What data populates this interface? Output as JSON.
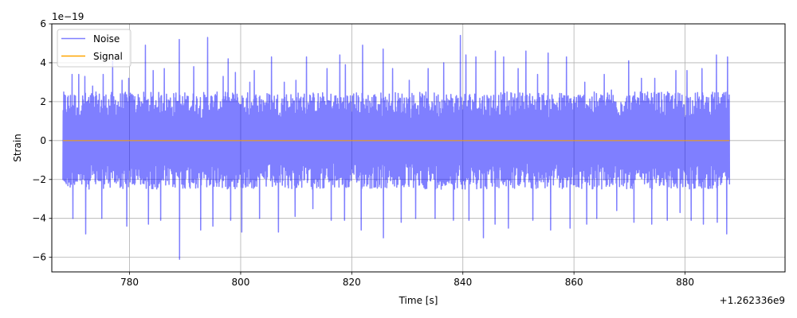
{
  "chart_data": {
    "type": "line",
    "xlabel": "Time [s]",
    "ylabel": "Strain",
    "x_offset_label": "+1.262336e9",
    "y_scale_label": "1e−19",
    "xlim": [
      766,
      898
    ],
    "ylim": [
      -6.75,
      6.0
    ],
    "xticks": [
      780,
      800,
      820,
      840,
      860,
      880
    ],
    "yticks": [
      -6,
      -4,
      -2,
      0,
      2,
      4,
      6
    ],
    "yticklabels": [
      "−6",
      "−4",
      "−2",
      "0",
      "2",
      "4",
      "6"
    ],
    "grid": true,
    "legend_position": "upper-left",
    "series": [
      {
        "name": "Noise",
        "color": "#0000ff",
        "x_range": [
          768,
          888
        ],
        "y_typical_range": [
          -2.5,
          2.5
        ],
        "peaks_x": [
          768.4,
          769.6,
          770.8,
          771.9,
          773.3,
          775.2,
          776.9,
          778.6,
          779.8,
          782.8,
          784.2,
          786.2,
          788.9,
          789.0,
          791.5,
          794.0,
          796.8,
          797.7,
          799.0,
          801.6,
          802.4,
          805.5,
          807.8,
          809.9,
          811.8,
          815.5,
          817.8,
          818.8,
          821.9,
          825.6,
          827.3,
          830.3,
          833.7,
          836.5,
          839.5,
          840.5,
          842.3,
          845.8,
          847.3,
          849.9,
          851.3,
          853.4,
          855.3,
          858.6,
          861.9,
          865.4,
          866.7,
          869.8,
          872.1,
          874.5,
          878.3,
          880.3,
          883.0,
          885.6,
          887.6
        ],
        "peaks_y": [
          2.3,
          3.4,
          3.4,
          3.3,
          2.8,
          3.4,
          4.1,
          3.1,
          3.2,
          4.9,
          3.6,
          3.7,
          5.2,
          -6.1,
          3.8,
          5.3,
          3.3,
          4.2,
          3.5,
          3.0,
          3.6,
          4.3,
          3.0,
          3.1,
          4.3,
          3.7,
          4.4,
          3.9,
          4.9,
          4.7,
          3.7,
          3.1,
          3.7,
          4.0,
          5.4,
          4.4,
          4.3,
          4.6,
          4.3,
          3.7,
          4.6,
          3.4,
          4.5,
          4.3,
          3.0,
          3.4,
          2.6,
          4.1,
          3.2,
          3.2,
          3.6,
          3.6,
          3.7,
          4.4,
          4.3
        ],
        "troughs_x": [
          769.8,
          772.1,
          775.0,
          779.5,
          783.4,
          785.6,
          789.0,
          792.8,
          795.0,
          798.2,
          800.2,
          803.4,
          806.8,
          809.8,
          813.0,
          816.3,
          818.7,
          821.7,
          825.7,
          828.9,
          831.5,
          835.0,
          838.3,
          841.1,
          843.7,
          845.8,
          848.2,
          852.6,
          855.8,
          859.3,
          862.3,
          864.1,
          867.7,
          870.8,
          874.0,
          876.8,
          879.1,
          881.1,
          883.3,
          885.8,
          887.5
        ],
        "troughs_y": [
          -4.0,
          -4.8,
          -4.0,
          -4.4,
          -4.3,
          -4.1,
          -6.1,
          -4.6,
          -4.4,
          -4.1,
          -4.7,
          -4.0,
          -4.7,
          -3.9,
          -3.5,
          -4.1,
          -4.1,
          -4.6,
          -5.0,
          -4.2,
          -4.0,
          -4.0,
          -4.1,
          -4.1,
          -5.0,
          -4.3,
          -4.5,
          -4.1,
          -4.6,
          -4.5,
          -4.3,
          -4.0,
          -3.6,
          -4.2,
          -4.3,
          -4.1,
          -3.7,
          -4.1,
          -4.3,
          -4.2,
          -4.8
        ]
      },
      {
        "name": "Signal",
        "color": "#ffa500",
        "x": [
          768,
          888
        ],
        "y": [
          0,
          0
        ]
      }
    ]
  }
}
